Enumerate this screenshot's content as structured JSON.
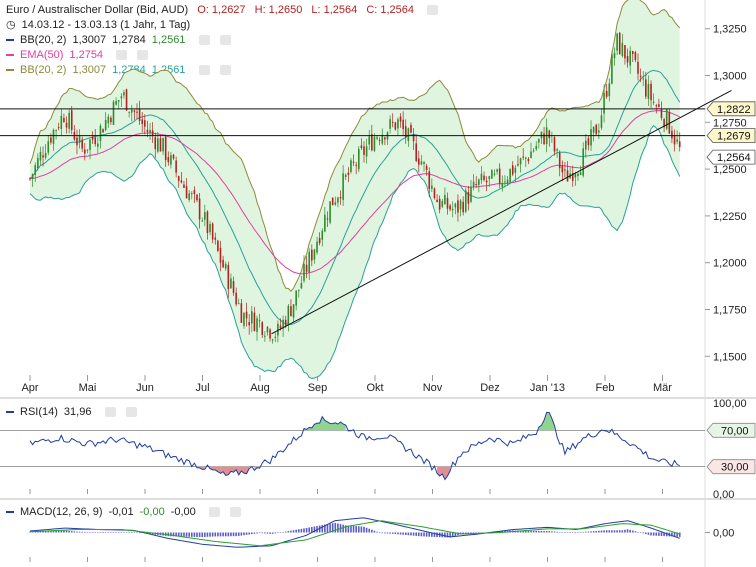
{
  "header": {
    "title": "Euro / Australischer Dollar (Bid, AUD)",
    "ohlc": {
      "o": "O: 1,2627",
      "h": "H: 1,2650",
      "l": "L: 1,2564",
      "c": "C: 1,2564"
    },
    "period": "14.03.12 - 13.03.13 (1 Jahr, 1 Tag)",
    "bb1": {
      "label": "BB(20, 2)",
      "v1": "1,3007",
      "v2": "1,2784",
      "v3": "1,2561"
    },
    "ema": {
      "label": "EMA(50)",
      "v1": "1,2754"
    },
    "bb2": {
      "label": "BB(20, 2)",
      "v1": "1,3007",
      "v2": "1,2784",
      "v3": "1,2561"
    },
    "rsi": {
      "label": "RSI(14)",
      "v1": "31,96"
    },
    "macd": {
      "label": "MACD(12, 26, 9)",
      "v1": "-0,01",
      "v2": "-0,00",
      "v3": "-0,00"
    }
  },
  "colors": {
    "up": "#2e8b2e",
    "down": "#b22222",
    "bb_fill": "#dff5df",
    "bb_line": "#2aa198",
    "bb_outer": "#8b8b3a",
    "ema": "#e040a0",
    "rsi_line": "#1f3fa0",
    "macd_line": "#1f3fa0",
    "signal_line": "#2e9e2e",
    "hist": "#5a5ac8",
    "rsi_over": "#8fd48f",
    "rsi_under": "#e09090"
  },
  "chart_data": [
    {
      "type": "candlestick",
      "name": "Euro / Australischer Dollar",
      "x_labels": [
        "Apr",
        "Mai",
        "Jun",
        "Jul",
        "Aug",
        "Sep",
        "Okt",
        "Nov",
        "Dez",
        "Jan '13",
        "Feb",
        "Mär"
      ],
      "y_ticks": [
        "1,3250",
        "1,3000",
        "1,2750",
        "1,2500",
        "1,2250",
        "1,2000",
        "1,1750",
        "1,1500"
      ],
      "ylim": [
        1.14,
        1.335
      ],
      "close_path": [
        {
          "m": 0.0,
          "v": 1.245
        },
        {
          "m": 0.3,
          "v": 1.265
        },
        {
          "m": 0.6,
          "v": 1.28
        },
        {
          "m": 0.9,
          "v": 1.26
        },
        {
          "m": 1.2,
          "v": 1.27
        },
        {
          "m": 1.6,
          "v": 1.29
        },
        {
          "m": 2.0,
          "v": 1.272
        },
        {
          "m": 2.3,
          "v": 1.262
        },
        {
          "m": 2.6,
          "v": 1.245
        },
        {
          "m": 3.0,
          "v": 1.225
        },
        {
          "m": 3.4,
          "v": 1.195
        },
        {
          "m": 3.7,
          "v": 1.172
        },
        {
          "m": 4.0,
          "v": 1.168
        },
        {
          "m": 4.3,
          "v": 1.162
        },
        {
          "m": 4.6,
          "v": 1.18
        },
        {
          "m": 4.9,
          "v": 1.205
        },
        {
          "m": 5.2,
          "v": 1.23
        },
        {
          "m": 5.6,
          "v": 1.25
        },
        {
          "m": 6.0,
          "v": 1.268
        },
        {
          "m": 6.4,
          "v": 1.275
        },
        {
          "m": 6.8,
          "v": 1.255
        },
        {
          "m": 7.1,
          "v": 1.232
        },
        {
          "m": 7.4,
          "v": 1.228
        },
        {
          "m": 7.8,
          "v": 1.242
        },
        {
          "m": 8.2,
          "v": 1.245
        },
        {
          "m": 8.6,
          "v": 1.255
        },
        {
          "m": 9.0,
          "v": 1.27
        },
        {
          "m": 9.3,
          "v": 1.245
        },
        {
          "m": 9.6,
          "v": 1.255
        },
        {
          "m": 9.9,
          "v": 1.275
        },
        {
          "m": 10.2,
          "v": 1.318
        },
        {
          "m": 10.5,
          "v": 1.305
        },
        {
          "m": 10.8,
          "v": 1.288
        },
        {
          "m": 11.1,
          "v": 1.275
        },
        {
          "m": 11.3,
          "v": 1.26
        }
      ],
      "last_month": 11.3,
      "hlines": [
        {
          "value": 1.2822,
          "label": "1,2822"
        },
        {
          "value": 1.2679,
          "label": "1,2679"
        },
        {
          "value": 1.2564,
          "label": "1,2564",
          "style": "price-tag"
        }
      ],
      "trendline": [
        {
          "m": 4.2,
          "v": 1.162
        },
        {
          "m": 12.2,
          "v": 1.292
        }
      ]
    },
    {
      "type": "line",
      "name": "RSI(14)",
      "y_ticks": [
        "100,00",
        "70,00",
        "30,00",
        "0,00"
      ],
      "ylim": [
        0,
        100
      ],
      "levels": [
        70,
        30
      ],
      "values_path": [
        {
          "m": 0.0,
          "v": 55
        },
        {
          "m": 0.5,
          "v": 62
        },
        {
          "m": 1.0,
          "v": 55
        },
        {
          "m": 1.5,
          "v": 60
        },
        {
          "m": 2.0,
          "v": 52
        },
        {
          "m": 2.5,
          "v": 40
        },
        {
          "m": 3.0,
          "v": 30
        },
        {
          "m": 3.4,
          "v": 20
        },
        {
          "m": 3.8,
          "v": 26
        },
        {
          "m": 4.2,
          "v": 38
        },
        {
          "m": 4.6,
          "v": 60
        },
        {
          "m": 5.0,
          "v": 82
        },
        {
          "m": 5.4,
          "v": 78
        },
        {
          "m": 5.8,
          "v": 62
        },
        {
          "m": 6.2,
          "v": 64
        },
        {
          "m": 6.6,
          "v": 48
        },
        {
          "m": 7.0,
          "v": 30
        },
        {
          "m": 7.2,
          "v": 18
        },
        {
          "m": 7.5,
          "v": 45
        },
        {
          "m": 8.0,
          "v": 62
        },
        {
          "m": 8.4,
          "v": 55
        },
        {
          "m": 8.8,
          "v": 68
        },
        {
          "m": 9.0,
          "v": 92
        },
        {
          "m": 9.3,
          "v": 45
        },
        {
          "m": 9.6,
          "v": 60
        },
        {
          "m": 10.0,
          "v": 72
        },
        {
          "m": 10.4,
          "v": 58
        },
        {
          "m": 10.8,
          "v": 40
        },
        {
          "m": 11.0,
          "v": 35
        },
        {
          "m": 11.3,
          "v": 32
        }
      ]
    },
    {
      "type": "line",
      "name": "MACD(12, 26, 9)",
      "y_ticks": [
        "0,00"
      ],
      "ylim": [
        -0.04,
        0.04
      ],
      "macd_path": [
        {
          "m": 0.0,
          "v": 0.002
        },
        {
          "m": 0.6,
          "v": 0.006
        },
        {
          "m": 1.2,
          "v": 0.004
        },
        {
          "m": 1.8,
          "v": 0.003
        },
        {
          "m": 2.4,
          "v": -0.008
        },
        {
          "m": 3.0,
          "v": -0.016
        },
        {
          "m": 3.6,
          "v": -0.02
        },
        {
          "m": 4.2,
          "v": -0.018
        },
        {
          "m": 4.8,
          "v": -0.004
        },
        {
          "m": 5.3,
          "v": 0.016
        },
        {
          "m": 5.8,
          "v": 0.02
        },
        {
          "m": 6.3,
          "v": 0.012
        },
        {
          "m": 6.9,
          "v": 0.001
        },
        {
          "m": 7.3,
          "v": -0.006
        },
        {
          "m": 7.8,
          "v": -0.002
        },
        {
          "m": 8.4,
          "v": 0.004
        },
        {
          "m": 9.0,
          "v": 0.007
        },
        {
          "m": 9.5,
          "v": 0.004
        },
        {
          "m": 10.0,
          "v": 0.012
        },
        {
          "m": 10.4,
          "v": 0.016
        },
        {
          "m": 10.8,
          "v": 0.006
        },
        {
          "m": 11.3,
          "v": -0.008
        }
      ],
      "signal_path": [
        {
          "m": 0.0,
          "v": 0.001
        },
        {
          "m": 0.8,
          "v": 0.004
        },
        {
          "m": 1.6,
          "v": 0.004
        },
        {
          "m": 2.4,
          "v": -0.003
        },
        {
          "m": 3.2,
          "v": -0.012
        },
        {
          "m": 4.0,
          "v": -0.018
        },
        {
          "m": 4.8,
          "v": -0.01
        },
        {
          "m": 5.5,
          "v": 0.008
        },
        {
          "m": 6.1,
          "v": 0.016
        },
        {
          "m": 6.8,
          "v": 0.008
        },
        {
          "m": 7.5,
          "v": -0.002
        },
        {
          "m": 8.2,
          "v": 0.0
        },
        {
          "m": 9.0,
          "v": 0.005
        },
        {
          "m": 9.6,
          "v": 0.005
        },
        {
          "m": 10.3,
          "v": 0.012
        },
        {
          "m": 10.8,
          "v": 0.01
        },
        {
          "m": 11.3,
          "v": -0.002
        }
      ]
    }
  ]
}
